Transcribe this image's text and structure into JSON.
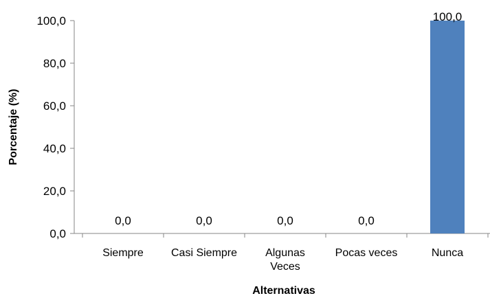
{
  "chart_data": {
    "type": "bar",
    "categories": [
      "Siempre",
      "Casi Siempre",
      "Algunas Veces",
      "Pocas veces",
      "Nunca"
    ],
    "category_lines": [
      [
        "Siempre"
      ],
      [
        "Casi Siempre"
      ],
      [
        "Algunas",
        "Veces"
      ],
      [
        "Pocas veces"
      ],
      [
        "Nunca"
      ]
    ],
    "values": [
      0,
      0,
      0,
      0,
      100
    ],
    "data_labels": [
      "0,0",
      "0,0",
      "0,0",
      "0,0",
      "100,0"
    ],
    "title": "",
    "xlabel": "Alternativas",
    "ylabel": "Porcentaje (%)",
    "ylim": [
      0,
      100
    ],
    "yticks": [
      0,
      20,
      40,
      60,
      80,
      100
    ],
    "ytick_labels": [
      "0,0",
      "20,0",
      "40,0",
      "60,0",
      "80,0",
      "100,0"
    ],
    "grid": false,
    "legend": "none",
    "bar_color": "#4F81BD",
    "axis_color": "#868686"
  }
}
